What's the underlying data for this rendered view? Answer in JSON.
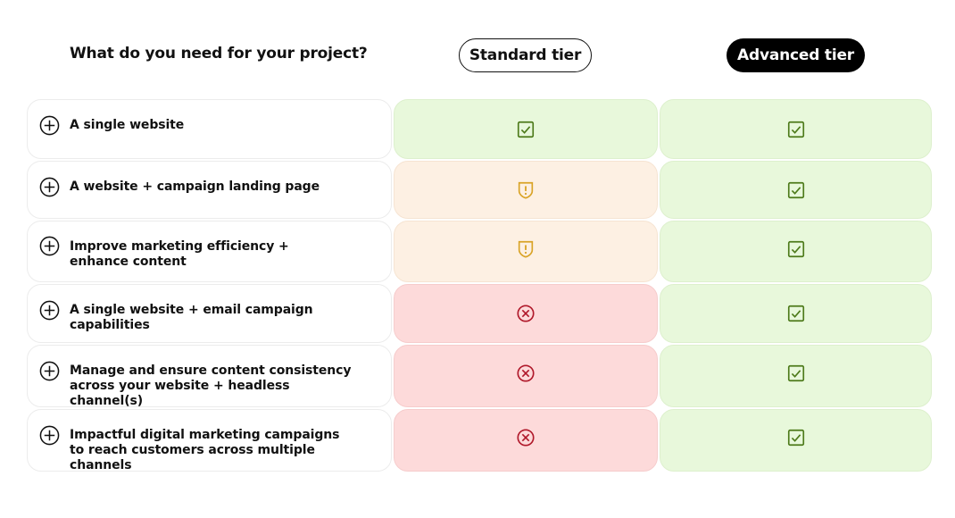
{
  "header": {
    "question": "What do you need for your project?",
    "standard_tier_label": "Standard tier",
    "advanced_tier_label": "Advanced tier"
  },
  "colors": {
    "green_cell": "#e8f8db",
    "orange_cell": "#fdf0e3",
    "red_cell": "#fddada",
    "check_icon": "#4d7a1a",
    "warning_icon": "#d9a326",
    "cross_icon": "#b0182a"
  },
  "rows": [
    {
      "feature": "A single website",
      "standard": "check",
      "advanced": "check"
    },
    {
      "feature": "A website + campaign landing page",
      "standard": "warning",
      "advanced": "check"
    },
    {
      "feature": "Improve marketing efficiency + enhance content",
      "standard": "warning",
      "advanced": "check"
    },
    {
      "feature": "A single website + email campaign capabilities",
      "standard": "cross",
      "advanced": "check"
    },
    {
      "feature": "Manage and ensure content consistency across your website + headless channel(s)",
      "standard": "cross",
      "advanced": "check"
    },
    {
      "feature": "Impactful digital marketing campaigns to reach customers across multiple channels",
      "standard": "cross",
      "advanced": "check"
    }
  ],
  "icons": {
    "expand": "plus-circle-icon",
    "check": "checkbox-check-icon",
    "warning": "shield-warning-icon",
    "cross": "circle-x-icon"
  }
}
